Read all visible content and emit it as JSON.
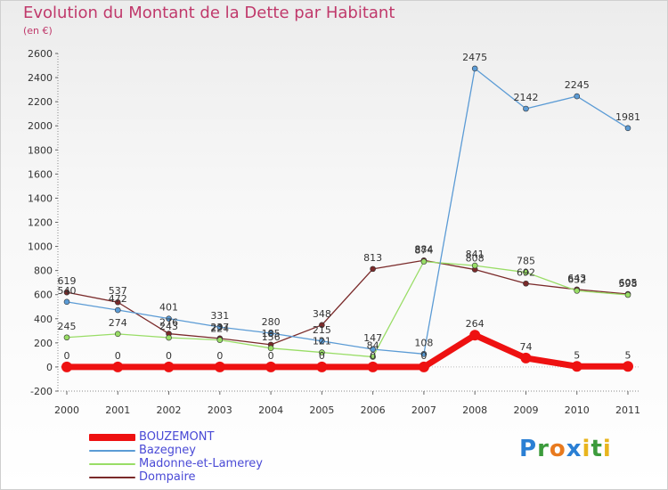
{
  "header": {
    "title": "Evolution du Montant de la Dette par Habitant",
    "subtitle": "(en €)"
  },
  "brand": {
    "logo_letters": [
      "P",
      "r",
      "o",
      "x",
      "i",
      "t",
      "i"
    ],
    "logo_colors": [
      "#2a7fd4",
      "#3c9b3c",
      "#e87a1e",
      "#2a7fd4",
      "#e8b51e",
      "#3c9b3c",
      "#e8b51e"
    ]
  },
  "chart_data": {
    "type": "line",
    "title": "Evolution du Montant de la Dette par Habitant",
    "ylabel": "(en €)",
    "ylim": [
      -200,
      2600
    ],
    "yticks": [
      -200,
      0,
      200,
      400,
      600,
      800,
      1000,
      1200,
      1400,
      1600,
      1800,
      2000,
      2200,
      2400,
      2600
    ],
    "grid": false,
    "legend_position": "bottom-left",
    "x": [
      "2000",
      "2001",
      "2002",
      "2003",
      "2004",
      "2005",
      "2006",
      "2007",
      "2008",
      "2009",
      "2010",
      "2011"
    ],
    "series": [
      {
        "name": "BOUZEMONT",
        "color": "#ee1111",
        "values": [
          0,
          0,
          0,
          0,
          0,
          0,
          0,
          0,
          264,
          74,
          5,
          5
        ],
        "labels": [
          "0",
          "0",
          "0",
          "0",
          "0",
          "0",
          "0",
          "0",
          "264",
          "74",
          "5",
          "5"
        ]
      },
      {
        "name": "Bazegney",
        "color": "#5b9bd5",
        "values": [
          540,
          472,
          401,
          331,
          280,
          215,
          147,
          108,
          2475,
          2142,
          2245,
          1981
        ],
        "labels": [
          "540",
          "472",
          "401",
          "331",
          "280",
          "215",
          "147",
          "108",
          "2475",
          "2142",
          "2245",
          "1981"
        ]
      },
      {
        "name": "Madonne-et-Lamerey",
        "color": "#99dd66",
        "values": [
          245,
          274,
          243,
          224,
          156,
          121,
          84,
          874,
          841,
          785,
          632,
          598
        ],
        "labels": [
          "245",
          "274",
          "243",
          "224",
          "156",
          "121",
          "84",
          "874",
          "841",
          "785",
          "632",
          "598"
        ]
      },
      {
        "name": "Dompaire",
        "color": "#7a2a2a",
        "values": [
          619,
          537,
          276,
          237,
          185,
          348,
          813,
          884,
          808,
          692,
          643,
          605
        ],
        "labels": [
          "619",
          "537",
          "276",
          "237",
          "185",
          "348",
          "813",
          "884",
          "808",
          "692",
          "643",
          "605"
        ]
      }
    ]
  }
}
